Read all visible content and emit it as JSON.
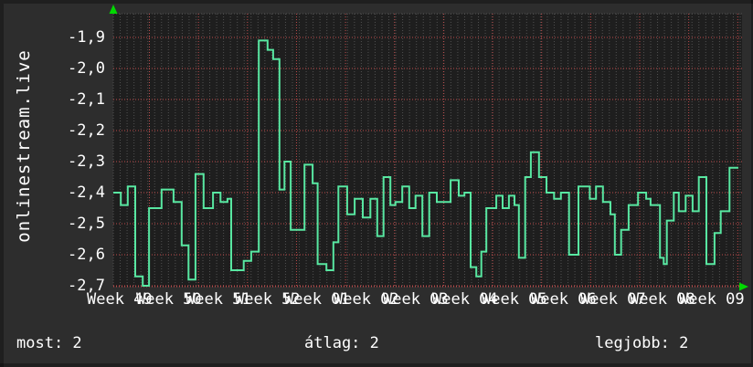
{
  "page": {
    "title": "onlinestream.live",
    "footer": {
      "most": "most: 2",
      "atlag": "átlag: 2",
      "legjobb": "legjobb: 2"
    }
  },
  "colors": {
    "background": "#2d2d2d",
    "plot_background": "#1e1e1e",
    "line": "#58e7a1",
    "grid_minor": "#515151",
    "grid_major": "#bf4b4b",
    "axis_text": "#ffffff",
    "arrow": "#00d900"
  },
  "chart_data": {
    "type": "line",
    "subtype": "step",
    "title": "onlinestream.live",
    "ylabel": "",
    "xlabel": "",
    "y_range": [
      -2.7,
      -1.9
    ],
    "y_tick_step": 0.1,
    "y_tick_labels": [
      "-1,9",
      "-2,0",
      "-2,1",
      "-2,2",
      "-2,3",
      "-2,4",
      "-2,5",
      "-2,6",
      "-2,7"
    ],
    "x_labels": [
      "Week 49",
      "Week 50",
      "Week 51",
      "Week 52",
      "Week 01",
      "Week 02",
      "Week 03",
      "Week 04",
      "Week 05",
      "Week 06",
      "Week 07",
      "Week 08",
      "Week 09"
    ],
    "grid": true,
    "legend_position": "none",
    "footer_stats": {
      "most": 2,
      "atlag": 2,
      "legjobb": 2
    },
    "series": [
      {
        "name": "onlinestream.live",
        "points": [
          [
            0.0,
            -2.4
          ],
          [
            0.012,
            -2.44
          ],
          [
            0.023,
            -2.38
          ],
          [
            0.035,
            -2.67
          ],
          [
            0.047,
            -2.7
          ],
          [
            0.057,
            -2.45
          ],
          [
            0.077,
            -2.39
          ],
          [
            0.096,
            -2.43
          ],
          [
            0.109,
            -2.57
          ],
          [
            0.12,
            -2.68
          ],
          [
            0.131,
            -2.34
          ],
          [
            0.144,
            -2.45
          ],
          [
            0.159,
            -2.4
          ],
          [
            0.171,
            -2.43
          ],
          [
            0.182,
            -2.42
          ],
          [
            0.188,
            -2.65
          ],
          [
            0.208,
            -2.62
          ],
          [
            0.22,
            -2.59
          ],
          [
            0.232,
            -1.91
          ],
          [
            0.246,
            -1.94
          ],
          [
            0.255,
            -1.97
          ],
          [
            0.265,
            -2.39
          ],
          [
            0.273,
            -2.3
          ],
          [
            0.283,
            -2.52
          ],
          [
            0.305,
            -2.31
          ],
          [
            0.318,
            -2.37
          ],
          [
            0.326,
            -2.63
          ],
          [
            0.34,
            -2.65
          ],
          [
            0.351,
            -2.56
          ],
          [
            0.359,
            -2.38
          ],
          [
            0.373,
            -2.47
          ],
          [
            0.385,
            -2.42
          ],
          [
            0.398,
            -2.48
          ],
          [
            0.41,
            -2.42
          ],
          [
            0.421,
            -2.54
          ],
          [
            0.431,
            -2.35
          ],
          [
            0.442,
            -2.44
          ],
          [
            0.45,
            -2.43
          ],
          [
            0.461,
            -2.38
          ],
          [
            0.472,
            -2.45
          ],
          [
            0.482,
            -2.41
          ],
          [
            0.493,
            -2.54
          ],
          [
            0.504,
            -2.4
          ],
          [
            0.516,
            -2.43
          ],
          [
            0.538,
            -2.36
          ],
          [
            0.551,
            -2.41
          ],
          [
            0.56,
            -2.4
          ],
          [
            0.57,
            -2.64
          ],
          [
            0.579,
            -2.67
          ],
          [
            0.587,
            -2.59
          ],
          [
            0.595,
            -2.45
          ],
          [
            0.611,
            -2.41
          ],
          [
            0.621,
            -2.45
          ],
          [
            0.631,
            -2.41
          ],
          [
            0.64,
            -2.44
          ],
          [
            0.647,
            -2.61
          ],
          [
            0.657,
            -2.35
          ],
          [
            0.666,
            -2.27
          ],
          [
            0.679,
            -2.35
          ],
          [
            0.691,
            -2.4
          ],
          [
            0.703,
            -2.42
          ],
          [
            0.714,
            -2.4
          ],
          [
            0.727,
            -2.6
          ],
          [
            0.742,
            -2.38
          ],
          [
            0.76,
            -2.42
          ],
          [
            0.77,
            -2.38
          ],
          [
            0.781,
            -2.43
          ],
          [
            0.793,
            -2.47
          ],
          [
            0.8,
            -2.6
          ],
          [
            0.81,
            -2.52
          ],
          [
            0.822,
            -2.44
          ],
          [
            0.837,
            -2.4
          ],
          [
            0.85,
            -2.42
          ],
          [
            0.857,
            -2.44
          ],
          [
            0.872,
            -2.61
          ],
          [
            0.878,
            -2.63
          ],
          [
            0.883,
            -2.49
          ],
          [
            0.894,
            -2.4
          ],
          [
            0.902,
            -2.46
          ],
          [
            0.913,
            -2.41
          ],
          [
            0.924,
            -2.46
          ],
          [
            0.934,
            -2.35
          ],
          [
            0.946,
            -2.63
          ],
          [
            0.959,
            -2.53
          ],
          [
            0.969,
            -2.46
          ],
          [
            0.983,
            -2.32
          ]
        ]
      }
    ]
  }
}
